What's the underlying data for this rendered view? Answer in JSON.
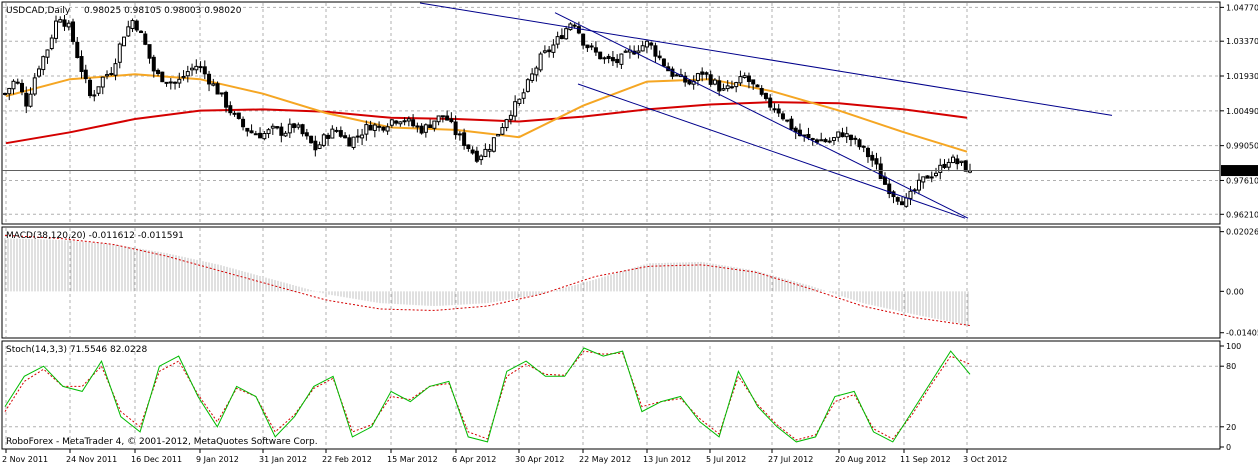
{
  "chart_data": [
    {
      "type": "candlestick",
      "header": {
        "symbol_tf": "USDCAD,Daily",
        "ohlc_text": "0.98025 0.98105 0.98003 0.98020"
      },
      "ylim": [
        0.9585,
        1.0495
      ],
      "y_ticks": [
        "1.04770",
        "1.03370",
        "1.01930",
        "1.00490",
        "0.99050",
        "0.97610",
        "0.96210"
      ],
      "current_price": "0.98020",
      "colors": {
        "candle": "#000000",
        "ma_fast": "#f5a623",
        "ma_slow": "#d40000",
        "channel": "#00008b",
        "price_tag_bg": "#000000",
        "price_tag_text": "#ffffff"
      },
      "close_path": [
        1.012,
        1.018,
        1.008,
        1.022,
        1.031,
        1.045,
        1.039,
        1.024,
        1.01,
        1.018,
        1.022,
        1.036,
        1.043,
        1.033,
        1.02,
        1.018,
        1.016,
        1.021,
        1.024,
        1.018,
        1.012,
        1.005,
        0.999,
        0.996,
        0.995,
        0.997,
        0.996,
        0.999,
        0.994,
        0.989,
        0.995,
        0.997,
        0.992,
        0.995,
        0.999,
        0.998,
        1.001,
        1.002,
        0.999,
        0.997,
        1.001,
        1.003,
        0.996,
        0.991,
        0.986,
        0.989,
        0.996,
        1.004,
        1.009,
        1.018,
        1.027,
        1.031,
        1.037,
        1.043,
        1.033,
        1.029,
        1.026,
        1.025,
        1.028,
        1.031,
        1.033,
        1.027,
        1.021,
        1.018,
        1.016,
        1.021,
        1.017,
        1.013,
        1.015,
        1.019,
        1.014,
        1.008,
        1.006,
        1.0,
        0.995,
        0.993,
        0.993,
        0.992,
        0.996,
        0.993,
        0.989,
        0.984,
        0.975,
        0.97,
        0.967,
        0.973,
        0.978,
        0.98,
        0.985,
        0.983,
        0.9802
      ],
      "ma_fast": [
        {
          "date": "2 Nov 2011",
          "value": 1.011
        },
        {
          "date": "24 Nov 2011",
          "value": 1.018
        },
        {
          "date": "16 Dec 2011",
          "value": 1.02
        },
        {
          "date": "9 Jan 2012",
          "value": 1.018
        },
        {
          "date": "31 Jan 2012",
          "value": 1.012
        },
        {
          "date": "22 Feb 2012",
          "value": 1.004
        },
        {
          "date": "15 Mar 2012",
          "value": 0.998
        },
        {
          "date": "6 Apr 2012",
          "value": 0.997
        },
        {
          "date": "30 Apr 2012",
          "value": 0.994
        },
        {
          "date": "22 May 2012",
          "value": 1.007
        },
        {
          "date": "13 Jun 2012",
          "value": 1.017
        },
        {
          "date": "5 Jul 2012",
          "value": 1.018
        },
        {
          "date": "27 Jul 2012",
          "value": 1.013
        },
        {
          "date": "20 Aug 2012",
          "value": 1.005
        },
        {
          "date": "11 Sep 2012",
          "value": 0.996
        },
        {
          "date": "3 Oct 2012",
          "value": 0.988
        }
      ],
      "ma_slow": [
        {
          "date": "2 Nov 2011",
          "value": 0.9915
        },
        {
          "date": "24 Nov 2011",
          "value": 0.996
        },
        {
          "date": "16 Dec 2011",
          "value": 1.0015
        },
        {
          "date": "9 Jan 2012",
          "value": 1.005
        },
        {
          "date": "31 Jan 2012",
          "value": 1.0055
        },
        {
          "date": "22 Feb 2012",
          "value": 1.0045
        },
        {
          "date": "15 Mar 2012",
          "value": 1.002
        },
        {
          "date": "6 Apr 2012",
          "value": 1.0015
        },
        {
          "date": "30 Apr 2012",
          "value": 1.0005
        },
        {
          "date": "22 May 2012",
          "value": 1.0025
        },
        {
          "date": "13 Jun 2012",
          "value": 1.0055
        },
        {
          "date": "5 Jul 2012",
          "value": 1.0075
        },
        {
          "date": "27 Jul 2012",
          "value": 1.0085
        },
        {
          "date": "20 Aug 2012",
          "value": 1.008
        },
        {
          "date": "11 Sep 2012",
          "value": 1.0055
        },
        {
          "date": "3 Oct 2012",
          "value": 1.002
        }
      ],
      "channel_lines": [
        {
          "name": "upper-a",
          "start": {
            "date": "15 Mar 2012",
            "value": 1.0495
          },
          "end": {
            "date": "20 Aug 2012",
            "value": 1.003
          }
        },
        {
          "name": "upper-b",
          "start": {
            "date": "13 May 2012",
            "value": 1.0455
          },
          "end": {
            "date": "3 Oct 2012",
            "value": 0.9605
          }
        },
        {
          "name": "lower",
          "start": {
            "date": "20 May 2012",
            "value": 1.016
          },
          "end": {
            "date": "11 Sep 2012",
            "value": 0.9605
          }
        }
      ]
    },
    {
      "type": "histogram",
      "header": "MACD(38,120,20) -0.011612 -0.011591",
      "ylim": [
        -0.0155,
        0.0215
      ],
      "y_ticks": [
        "0.02026",
        "0.00",
        "-0.01405"
      ],
      "histogram_path": [
        0.018,
        0.0175,
        0.016,
        0.013,
        0.009,
        0.004,
        -0.001,
        -0.004,
        -0.005,
        -0.004,
        -0.001,
        0.004,
        0.0095,
        0.01,
        0.007,
        0.002,
        -0.004,
        -0.008,
        -0.0116
      ],
      "signal_path": [
        0.019,
        0.018,
        0.016,
        0.012,
        0.007,
        0.002,
        -0.003,
        -0.006,
        -0.0065,
        -0.005,
        -0.001,
        0.005,
        0.0085,
        0.009,
        0.0065,
        0.001,
        -0.005,
        -0.009,
        -0.0116
      ],
      "colors": {
        "histogram": "#c0c0c0",
        "signal": "#d40000"
      }
    },
    {
      "type": "line",
      "header": "Stoch(14,3,3) 71.5546 82.0228",
      "ylim": [
        0,
        100
      ],
      "y_ticks": [
        "100",
        "80",
        "20",
        "0"
      ],
      "main_path": [
        40,
        70,
        80,
        60,
        55,
        85,
        30,
        15,
        80,
        90,
        50,
        20,
        60,
        50,
        10,
        30,
        60,
        70,
        10,
        20,
        55,
        45,
        60,
        65,
        10,
        5,
        75,
        85,
        70,
        70,
        98,
        90,
        95,
        35,
        45,
        50,
        25,
        10,
        75,
        40,
        20,
        5,
        10,
        50,
        55,
        15,
        5,
        35,
        65,
        95,
        72
      ],
      "signal_path": [
        35,
        65,
        77,
        60,
        60,
        80,
        35,
        20,
        75,
        85,
        52,
        25,
        58,
        50,
        15,
        32,
        58,
        68,
        15,
        22,
        50,
        47,
        60,
        63,
        15,
        8,
        70,
        82,
        72,
        71,
        95,
        92,
        93,
        40,
        45,
        48,
        28,
        13,
        70,
        42,
        22,
        7,
        12,
        45,
        52,
        18,
        8,
        32,
        62,
        90,
        82
      ],
      "colors": {
        "main": "#00bb00",
        "signal": "#d40000"
      }
    }
  ],
  "x_axis_labels": [
    "2 Nov 2011",
    "24 Nov 2011",
    "16 Dec 2011",
    "9 Jan 2012",
    "31 Jan 2012",
    "22 Feb 2012",
    "15 Mar 2012",
    "6 Apr 2012",
    "30 Apr 2012",
    "22 May 2012",
    "13 Jun 2012",
    "5 Jul 2012",
    "27 Jul 2012",
    "20 Aug 2012",
    "11 Sep 2012",
    "3 Oct 2012"
  ],
  "copyright": "RoboForex - MetaTrader 4, © 2001-2012, MetaQuotes Software Corp."
}
